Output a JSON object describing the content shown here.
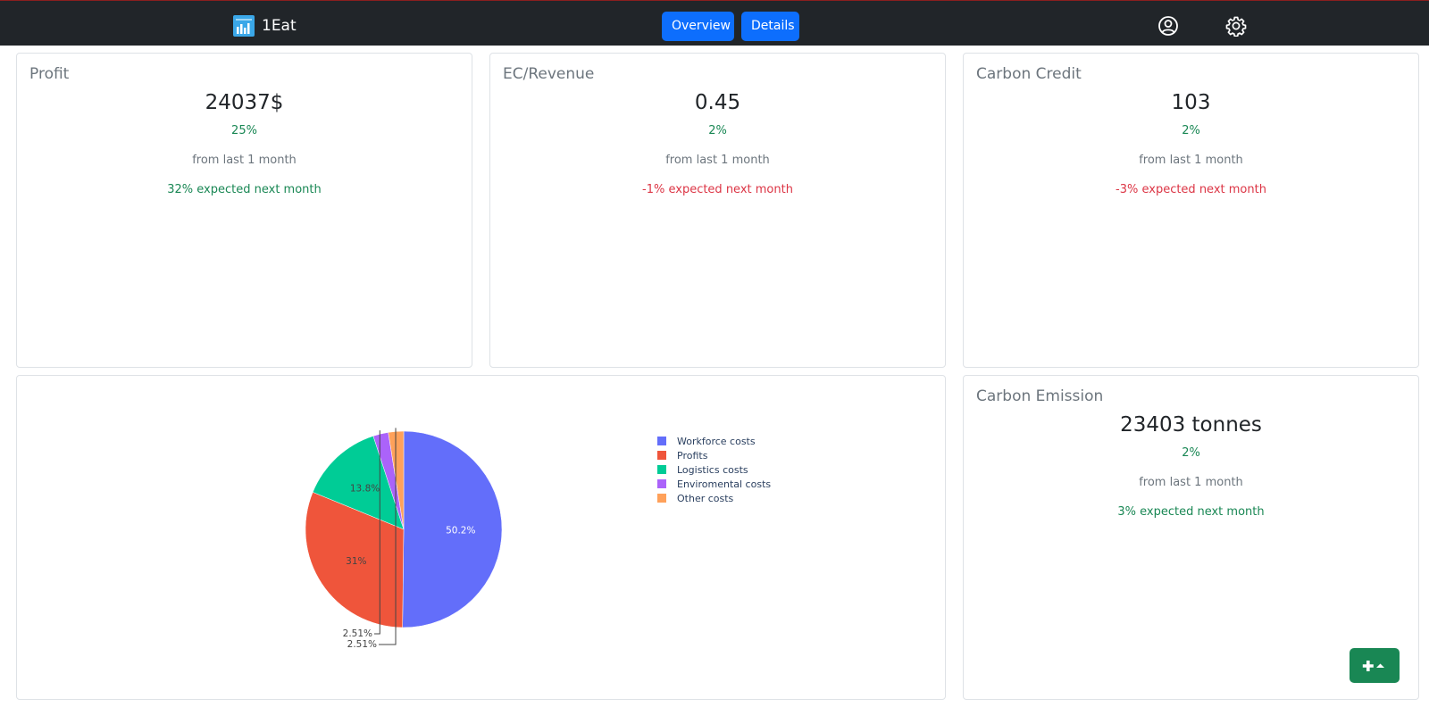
{
  "app": {
    "name": "1Eat",
    "logo_icon": "bar-chart-icon"
  },
  "nav": {
    "tabs": [
      {
        "label": "Overview"
      },
      {
        "label": "Details"
      }
    ],
    "icons": [
      "user-circle-icon",
      "gear-icon"
    ]
  },
  "cards": {
    "profit": {
      "title": "Profit",
      "value": "24037$",
      "change": "25%",
      "period": "from last 1 month",
      "forecast": "32% expected next month"
    },
    "ec_revenue": {
      "title": "EC/Revenue",
      "value": "0.45",
      "change": "2%",
      "period": "from last 1 month",
      "forecast": "-1% expected next month"
    },
    "carbon_credit": {
      "title": "Carbon Credit",
      "value": "103",
      "change": "2%",
      "period": "from last 1 month",
      "forecast": "-3% expected next month"
    },
    "carbon_emission": {
      "title": "Carbon Emission",
      "value": "23403 tonnes",
      "change": "2%",
      "period": "from last 1 month",
      "forecast": "3% expected next month"
    }
  },
  "colors": {
    "positive": "#198754",
    "negative": "#dc3545",
    "accent": "#0d6efd",
    "navbar": "#212529"
  },
  "chart_data": {
    "type": "pie",
    "title": "",
    "legend_position": "right",
    "categories": [
      "Workforce costs",
      "Profits",
      "Logistics costs",
      "Enviromental costs",
      "Other costs"
    ],
    "values": [
      50.2,
      31,
      13.8,
      2.51,
      2.51
    ],
    "labels": [
      "50.2%",
      "31%",
      "13.8%",
      "2.51%",
      "2.51%"
    ],
    "colors": [
      "#636efa",
      "#ef553b",
      "#00cc96",
      "#ab63fa",
      "#ffa15a"
    ]
  },
  "fab": {
    "icon": "add-chevron-up-icon"
  }
}
